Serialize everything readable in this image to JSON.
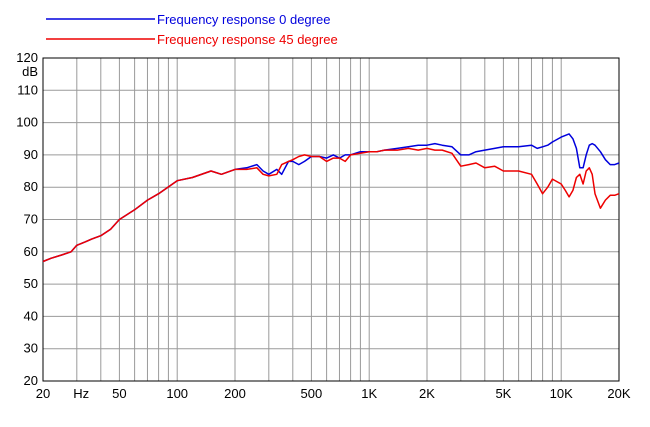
{
  "chart_data": {
    "type": "line",
    "title": "",
    "xlabel": "",
    "ylabel": "",
    "y_unit_label": "dB",
    "x_scale": "log",
    "xlim": [
      20,
      20000
    ],
    "ylim": [
      20,
      120
    ],
    "grid": true,
    "legend_position": "top-left",
    "x_tick_labels": [
      {
        "value": 20,
        "label": "20"
      },
      {
        "value": 50,
        "label": "50"
      },
      {
        "value": 100,
        "label": "100"
      },
      {
        "value": 200,
        "label": "200"
      },
      {
        "value": 500,
        "label": "500"
      },
      {
        "value": 1000,
        "label": "1K"
      },
      {
        "value": 2000,
        "label": "2K"
      },
      {
        "value": 5000,
        "label": "5K"
      },
      {
        "value": 10000,
        "label": "10K"
      },
      {
        "value": 20000,
        "label": "20K"
      }
    ],
    "x_unit_label": {
      "value": 31.6,
      "label": "Hz"
    },
    "y_ticks": [
      20,
      30,
      40,
      50,
      60,
      70,
      80,
      90,
      100,
      110,
      120
    ],
    "series": [
      {
        "name": "Frequency response 0 degree",
        "color": "#0000dd",
        "x": [
          20,
          22,
          25,
          28,
          30,
          33,
          36,
          40,
          45,
          50,
          60,
          70,
          80,
          100,
          120,
          150,
          170,
          200,
          230,
          260,
          280,
          300,
          330,
          350,
          380,
          400,
          430,
          460,
          500,
          550,
          600,
          650,
          700,
          750,
          800,
          900,
          1000,
          1100,
          1200,
          1400,
          1600,
          1800,
          2000,
          2200,
          2400,
          2700,
          3000,
          3300,
          3600,
          4000,
          4500,
          5000,
          5500,
          6000,
          7000,
          7500,
          8000,
          8500,
          9000,
          10000,
          11000,
          11500,
          12000,
          12500,
          13000,
          13500,
          14000,
          14500,
          15000,
          16000,
          17000,
          18000,
          19000,
          20000
        ],
        "y": [
          57,
          58,
          59,
          60,
          62,
          63,
          64,
          65,
          67,
          70,
          73,
          76,
          78,
          82,
          83,
          85,
          84,
          85.5,
          86,
          87,
          85,
          84,
          85.5,
          84,
          88,
          88,
          87,
          88,
          89.5,
          89.5,
          89,
          90,
          89,
          90,
          90,
          91,
          91,
          91,
          91.5,
          92,
          92.5,
          93,
          93,
          93.5,
          93,
          92.5,
          90,
          90,
          91,
          91.5,
          92,
          92.5,
          92.5,
          92.5,
          93,
          92,
          92.5,
          93,
          94,
          95.5,
          96.5,
          95,
          92,
          86,
          86,
          90,
          93,
          93.5,
          93,
          91,
          88.5,
          87,
          87,
          87.5
        ]
      },
      {
        "name": "Frequency response 45 degree",
        "color": "#ee0000",
        "x": [
          20,
          22,
          25,
          28,
          30,
          33,
          36,
          40,
          45,
          50,
          60,
          70,
          80,
          100,
          120,
          150,
          170,
          200,
          230,
          260,
          280,
          300,
          330,
          350,
          380,
          400,
          430,
          460,
          500,
          550,
          600,
          650,
          700,
          750,
          800,
          900,
          1000,
          1100,
          1200,
          1400,
          1600,
          1800,
          2000,
          2200,
          2400,
          2700,
          3000,
          3300,
          3600,
          4000,
          4500,
          5000,
          5500,
          6000,
          7000,
          7500,
          8000,
          8500,
          9000,
          10000,
          10500,
          11000,
          11500,
          12000,
          12500,
          13000,
          13500,
          14000,
          14500,
          15000,
          16000,
          17000,
          18000,
          19000,
          20000
        ],
        "y": [
          57,
          58,
          59,
          60,
          62,
          63,
          64,
          65,
          67,
          70,
          73,
          76,
          78,
          82,
          83,
          85,
          84,
          85.5,
          85.5,
          86,
          84,
          83.5,
          84,
          87,
          88,
          88.5,
          89.5,
          90,
          89.5,
          89.5,
          88,
          89,
          89,
          88,
          90,
          90.5,
          91,
          91,
          91.5,
          91.5,
          92,
          91.5,
          92,
          91.5,
          91.5,
          90.5,
          86.5,
          87,
          87.5,
          86,
          86.5,
          85,
          85,
          85,
          84,
          81,
          78,
          80,
          82.5,
          81,
          79,
          77,
          79,
          83,
          84,
          81,
          85,
          86,
          84,
          78,
          73.5,
          76,
          77.5,
          77.5,
          78
        ]
      }
    ]
  }
}
